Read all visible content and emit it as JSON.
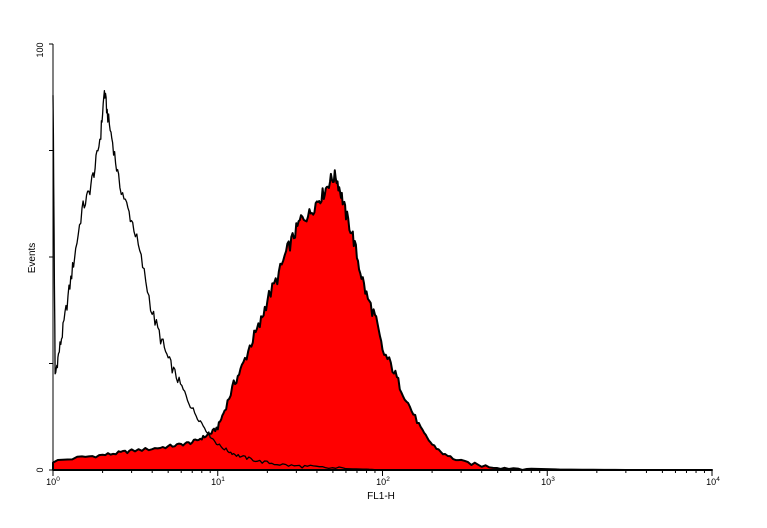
{
  "chart_data": {
    "type": "area",
    "xlabel": "FL1-H",
    "ylabel": "Events",
    "x_scale": "log",
    "xlim": [
      1,
      10000
    ],
    "ylim": [
      0,
      100
    ],
    "x_ticks": [
      {
        "base": "10",
        "exp": "0"
      },
      {
        "base": "10",
        "exp": "1"
      },
      {
        "base": "10",
        "exp": "2"
      },
      {
        "base": "10",
        "exp": "3"
      },
      {
        "base": "10",
        "exp": "4"
      }
    ],
    "y_ticks": [
      "0",
      "100"
    ],
    "grid": false,
    "series": [
      {
        "style": "outline",
        "color": "#000000",
        "x": [
          1.0,
          1.03,
          1.08,
          1.15,
          1.25,
          1.35,
          1.5,
          1.65,
          1.8,
          1.95,
          2.05,
          2.15,
          2.3,
          2.5,
          2.8,
          3.1,
          3.5,
          4.0,
          4.5,
          5.0,
          5.6,
          6.3,
          7.1,
          8.0,
          9.0,
          10.0,
          11.5,
          13.0,
          15.0,
          18.0,
          22.0,
          28.0,
          35.0,
          45.0,
          60.0,
          80.0,
          100.0
        ],
        "y": [
          89,
          22,
          27,
          33,
          42,
          50,
          61,
          65,
          71,
          79,
          89,
          83,
          77,
          68,
          62,
          57,
          48,
          37,
          31,
          26,
          22,
          18,
          14,
          11,
          8,
          6,
          4.5,
          3.5,
          2.8,
          2.0,
          1.5,
          1.0,
          0.8,
          0.5,
          0.3,
          0.2,
          0
        ]
      },
      {
        "style": "filled",
        "color": "#ff0000",
        "x": [
          1.0,
          1.5,
          2.0,
          2.5,
          3.0,
          4.0,
          5.0,
          6.0,
          7.0,
          8.0,
          9.0,
          10.0,
          11.0,
          12.5,
          14.0,
          16.0,
          18.0,
          20.0,
          23.0,
          26.0,
          29.0,
          32.0,
          36.0,
          40.0,
          44.0,
          48.0,
          52.0,
          56.0,
          60.0,
          66.0,
          72.0,
          80.0,
          90.0,
          100.0,
          115.0,
          130.0,
          150.0,
          175.0,
          200.0,
          240.0,
          300.0,
          400.0,
          550.0,
          800.0,
          1200.0,
          3000.0,
          10000.0
        ],
        "y": [
          2,
          3,
          3.5,
          4,
          4.5,
          5,
          5.5,
          6,
          6.5,
          7.5,
          8.5,
          10,
          14,
          20,
          24,
          30,
          34,
          40,
          45,
          51,
          55,
          59,
          60,
          63,
          65,
          68,
          69,
          65,
          60,
          55,
          48,
          41,
          36,
          28,
          24,
          19,
          14,
          9,
          6,
          3.5,
          2,
          1,
          0.5,
          0.3,
          0.1,
          0,
          0
        ]
      }
    ]
  }
}
